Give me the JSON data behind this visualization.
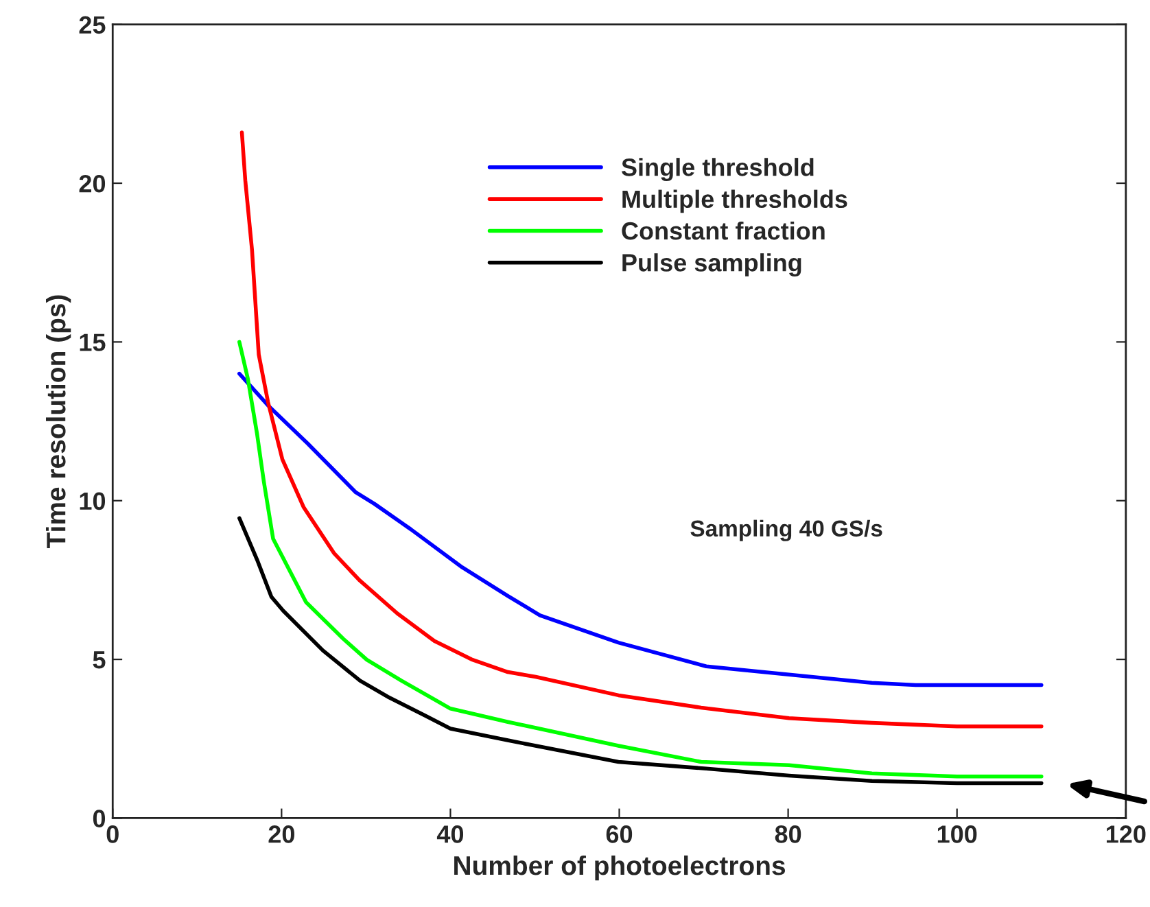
{
  "chart_data": {
    "type": "line",
    "xlabel": "Number of photoelectrons",
    "ylabel": "Time resolution (ps)",
    "annotations": [
      "Sampling 40 GS/s"
    ],
    "xlim": [
      0,
      120
    ],
    "xticks": [
      0,
      20,
      40,
      60,
      80,
      100,
      120
    ],
    "ylim": [
      0,
      25
    ],
    "yticks": [
      0,
      5,
      10,
      15,
      20,
      25
    ],
    "grid": false,
    "legend": "top",
    "marker": "none",
    "line_style": "solid",
    "series": [
      {
        "name": "Single threshold",
        "color": "#0000ff",
        "x": [
          15.0,
          18.4,
          23.1,
          28.8,
          31.0,
          35.3,
          41.4,
          46.8,
          50.6,
          59.9,
          70.3,
          80.1,
          89.9,
          95.1,
          110
        ],
        "values": [
          14.0,
          13.0,
          11.8,
          10.26,
          9.9,
          9.1,
          7.9,
          7.0,
          6.39,
          5.53,
          4.78,
          4.52,
          4.26,
          4.19,
          4.19
        ]
      },
      {
        "name": "Multiple thresholds",
        "color": "#ff0000",
        "x": [
          15.3,
          15.7,
          16.5,
          17.3,
          18.4,
          20.1,
          22.6,
          26.2,
          29.2,
          33.7,
          38.1,
          42.5,
          46.8,
          50.1,
          59.9,
          69.7,
          80.1,
          89.9,
          100,
          110
        ],
        "values": [
          21.6,
          20.1,
          17.9,
          14.6,
          13.1,
          11.3,
          9.8,
          8.35,
          7.5,
          6.45,
          5.58,
          5.0,
          4.6,
          4.45,
          3.87,
          3.48,
          3.15,
          3.0,
          2.89,
          2.89
        ]
      },
      {
        "name": "Constant fraction",
        "color": "#00ff00",
        "x": [
          15.0,
          16.0,
          17.1,
          17.9,
          19.0,
          22.9,
          27.3,
          30.1,
          34.2,
          40.0,
          46.8,
          59.9,
          69.7,
          80.1,
          89.9,
          100,
          110
        ],
        "values": [
          15.0,
          13.85,
          12.1,
          10.6,
          8.8,
          6.8,
          5.65,
          4.99,
          4.33,
          3.45,
          3.03,
          2.28,
          1.77,
          1.67,
          1.41,
          1.31,
          1.31
        ]
      },
      {
        "name": "Pulse sampling",
        "color": "#000000",
        "x": [
          15.0,
          17.1,
          18.8,
          20.2,
          24.9,
          29.3,
          32.6,
          37.0,
          40.0,
          46.8,
          59.9,
          70.3,
          80.1,
          89.9,
          100,
          110
        ],
        "values": [
          9.45,
          8.14,
          6.97,
          6.53,
          5.28,
          4.33,
          3.82,
          3.23,
          2.82,
          2.45,
          1.77,
          1.56,
          1.34,
          1.17,
          1.1,
          1.1
        ]
      }
    ]
  }
}
